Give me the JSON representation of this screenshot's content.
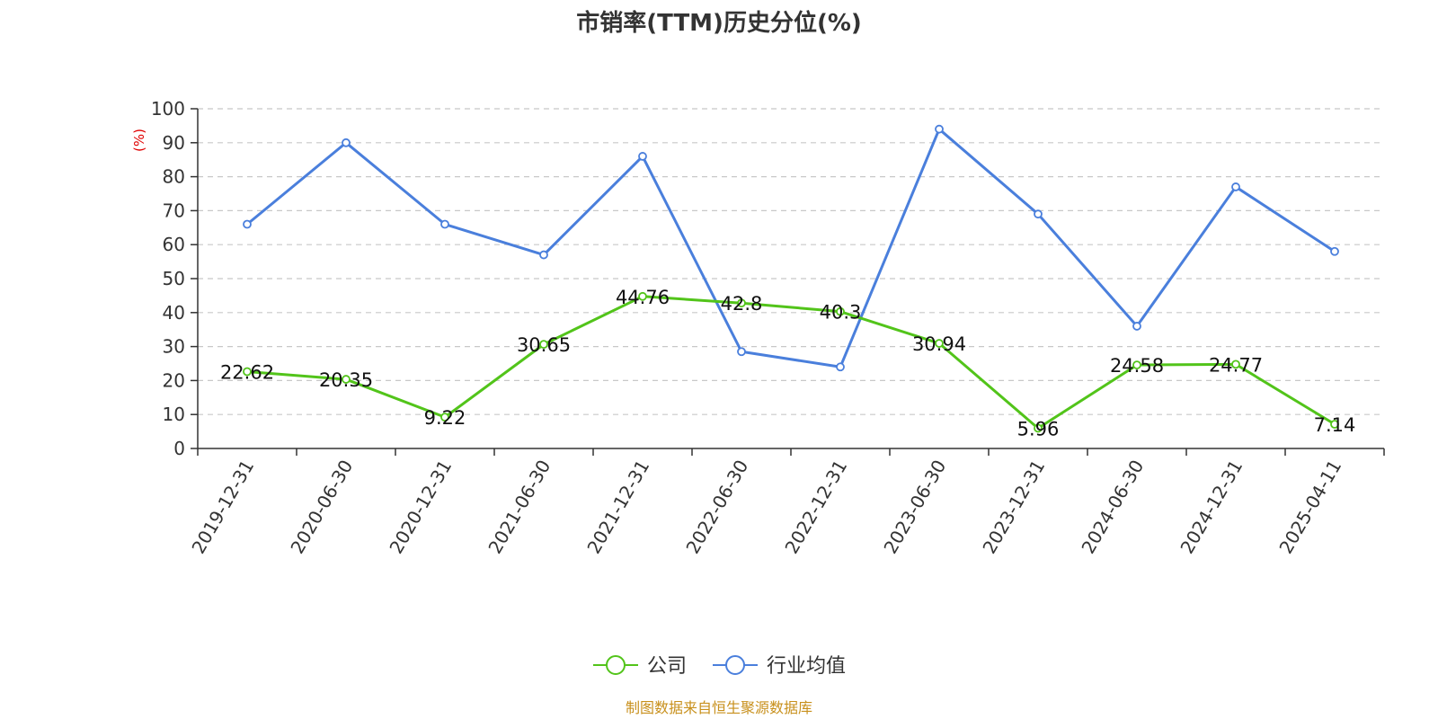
{
  "chart_data": {
    "type": "line",
    "title": "市销率(TTM)历史分位(%)",
    "ylabel": "(%)",
    "xlabel": "",
    "ylim": [
      0,
      100
    ],
    "yticks": [
      0,
      10,
      20,
      30,
      40,
      50,
      60,
      70,
      80,
      90,
      100
    ],
    "categories": [
      "2019-12-31",
      "2020-06-30",
      "2020-12-31",
      "2021-06-30",
      "2021-12-31",
      "2022-06-30",
      "2022-12-31",
      "2023-06-30",
      "2023-12-31",
      "2024-06-30",
      "2024-12-31",
      "2025-04-11"
    ],
    "series": [
      {
        "name": "公司",
        "color": "#52c41a",
        "values": [
          22.62,
          20.35,
          9.22,
          30.65,
          44.76,
          42.8,
          40.3,
          30.94,
          5.96,
          24.58,
          24.77,
          7.14
        ],
        "labels": [
          "22.62",
          "20.35",
          "9.22",
          "30.65",
          "44.76",
          "42.8",
          "40.3",
          "30.94",
          "5.96",
          "24.58",
          "24.77",
          "7.14"
        ]
      },
      {
        "name": "行业均值",
        "color": "#4a7fdc",
        "values": [
          66,
          90,
          66,
          57,
          86,
          28.5,
          24,
          94,
          69,
          36,
          77,
          58
        ]
      }
    ],
    "grid": true,
    "legend": "bottom-center"
  },
  "footer": {
    "source": "制图数据来自恒生聚源数据库"
  }
}
